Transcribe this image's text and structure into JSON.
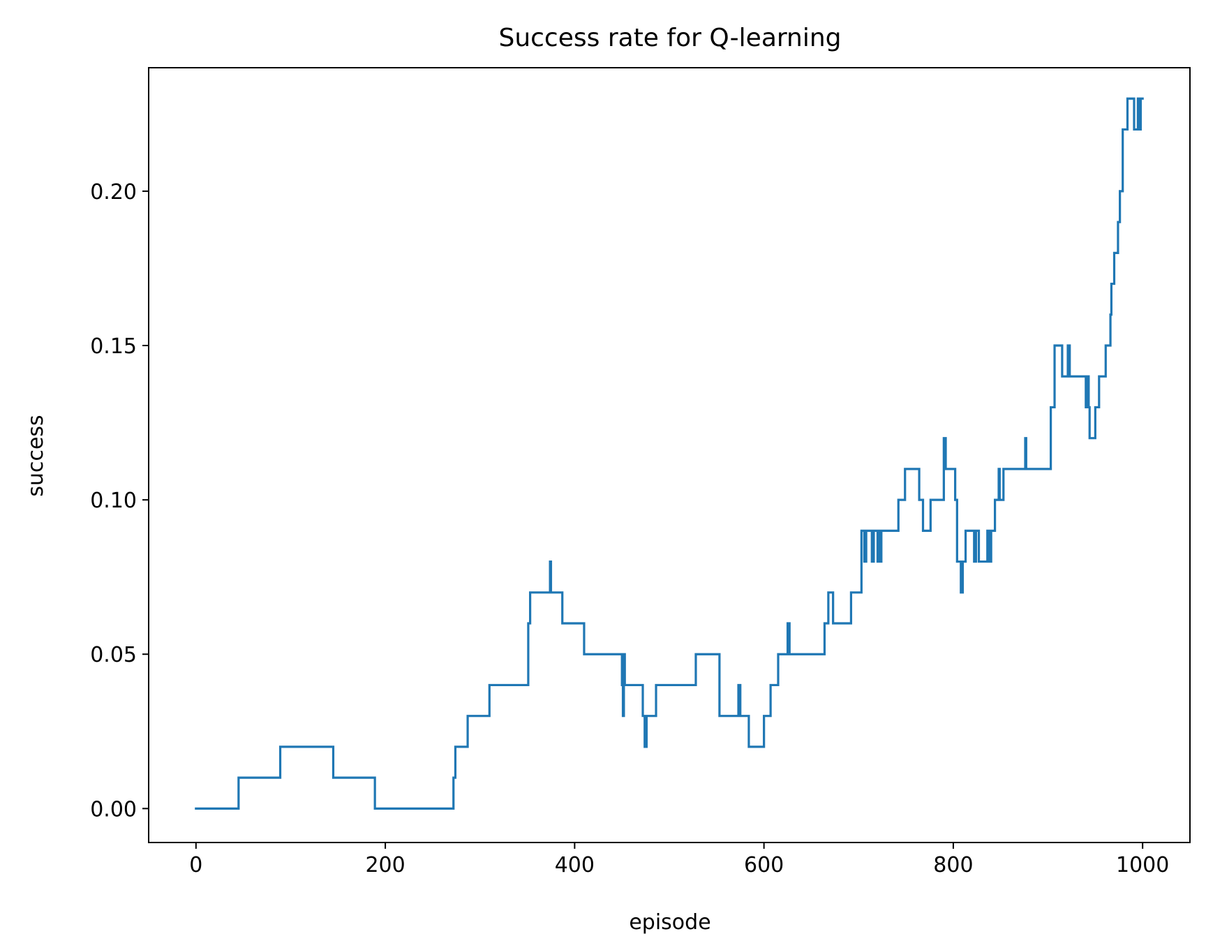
{
  "chart_data": {
    "type": "line",
    "title": "Success rate for Q-learning",
    "xlabel": "episode",
    "ylabel": "success",
    "xlim": [
      -50,
      1050
    ],
    "ylim": [
      -0.011,
      0.24
    ],
    "x_ticks": [
      0,
      200,
      400,
      600,
      800,
      1000
    ],
    "x_tick_labels": [
      "0",
      "200",
      "400",
      "600",
      "800",
      "1000"
    ],
    "y_ticks": [
      0.0,
      0.05,
      0.1,
      0.15,
      0.2
    ],
    "y_tick_labels": [
      "0.00",
      "0.05",
      "0.10",
      "0.15",
      "0.20"
    ],
    "grid": false,
    "legend": "none",
    "series": [
      {
        "color": "#1f77b4",
        "step": "post",
        "points": [
          [
            0,
            0.0
          ],
          [
            45,
            0.01
          ],
          [
            89,
            0.02
          ],
          [
            145,
            0.01
          ],
          [
            189,
            0.0
          ],
          [
            272,
            0.01
          ],
          [
            274,
            0.02
          ],
          [
            287,
            0.03
          ],
          [
            310,
            0.04
          ],
          [
            351,
            0.06
          ],
          [
            353,
            0.07
          ],
          [
            374,
            0.08
          ],
          [
            375,
            0.07
          ],
          [
            387,
            0.06
          ],
          [
            410,
            0.05
          ],
          [
            450,
            0.04
          ],
          [
            451,
            0.03
          ],
          [
            452,
            0.05
          ],
          [
            453,
            0.04
          ],
          [
            472,
            0.03
          ],
          [
            474,
            0.02
          ],
          [
            476,
            0.03
          ],
          [
            486,
            0.04
          ],
          [
            528,
            0.05
          ],
          [
            553,
            0.03
          ],
          [
            573,
            0.04
          ],
          [
            575,
            0.03
          ],
          [
            584,
            0.02
          ],
          [
            600,
            0.03
          ],
          [
            607,
            0.04
          ],
          [
            615,
            0.05
          ],
          [
            625,
            0.06
          ],
          [
            627,
            0.05
          ],
          [
            664,
            0.06
          ],
          [
            668,
            0.07
          ],
          [
            673,
            0.06
          ],
          [
            692,
            0.07
          ],
          [
            703,
            0.09
          ],
          [
            706,
            0.08
          ],
          [
            708,
            0.09
          ],
          [
            714,
            0.08
          ],
          [
            716,
            0.09
          ],
          [
            720,
            0.08
          ],
          [
            721,
            0.09
          ],
          [
            722,
            0.08
          ],
          [
            724,
            0.09
          ],
          [
            742,
            0.1
          ],
          [
            749,
            0.11
          ],
          [
            764,
            0.1
          ],
          [
            768,
            0.09
          ],
          [
            776,
            0.1
          ],
          [
            790,
            0.12
          ],
          [
            792,
            0.11
          ],
          [
            802,
            0.1
          ],
          [
            804,
            0.08
          ],
          [
            808,
            0.07
          ],
          [
            810,
            0.08
          ],
          [
            813,
            0.09
          ],
          [
            822,
            0.08
          ],
          [
            824,
            0.09
          ],
          [
            827,
            0.08
          ],
          [
            832,
            0.08
          ],
          [
            834,
            0.08
          ],
          [
            836,
            0.09
          ],
          [
            838,
            0.08
          ],
          [
            840,
            0.09
          ],
          [
            844,
            0.1
          ],
          [
            848,
            0.11
          ],
          [
            849,
            0.1
          ],
          [
            853,
            0.11
          ],
          [
            876,
            0.12
          ],
          [
            877,
            0.11
          ],
          [
            903,
            0.13
          ],
          [
            907,
            0.15
          ],
          [
            915,
            0.14
          ],
          [
            921,
            0.15
          ],
          [
            923,
            0.14
          ],
          [
            940,
            0.13
          ],
          [
            942,
            0.14
          ],
          [
            943,
            0.13
          ],
          [
            944,
            0.12
          ],
          [
            950,
            0.13
          ],
          [
            954,
            0.14
          ],
          [
            961,
            0.15
          ],
          [
            966,
            0.16
          ],
          [
            967,
            0.17
          ],
          [
            970,
            0.18
          ],
          [
            974,
            0.19
          ],
          [
            976,
            0.2
          ],
          [
            979,
            0.22
          ],
          [
            984,
            0.23
          ],
          [
            991,
            0.22
          ],
          [
            995,
            0.23
          ],
          [
            996,
            0.22
          ],
          [
            998,
            0.23
          ],
          [
            1000,
            0.23
          ]
        ]
      }
    ]
  }
}
